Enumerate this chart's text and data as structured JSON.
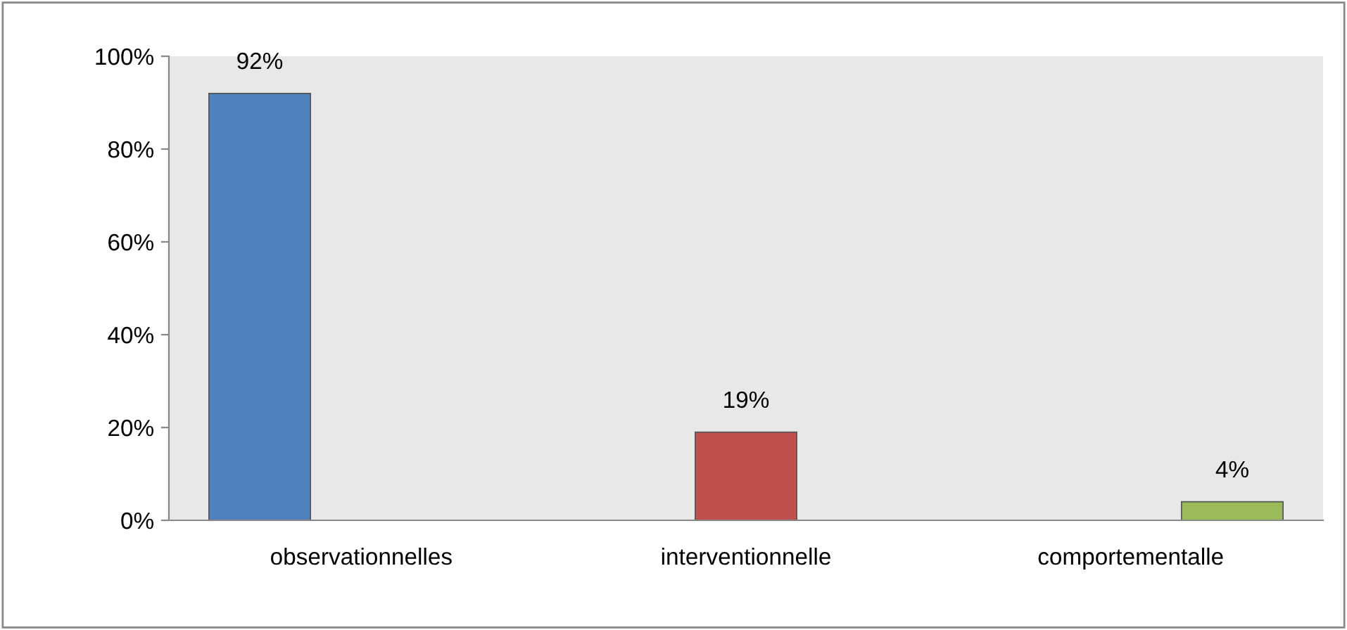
{
  "chart_data": {
    "type": "bar",
    "categories": [
      "observationnelles",
      "interventionnelle",
      "comportementalle"
    ],
    "values": [
      92,
      19,
      4
    ],
    "colors": [
      "#4f81bd",
      "#c0504d",
      "#9bbb59"
    ],
    "value_labels": [
      "92%",
      "19%",
      "4%"
    ],
    "ylim": [
      0,
      100
    ],
    "yticks": [
      {
        "value": 0,
        "label": "0%"
      },
      {
        "value": 20,
        "label": "20%"
      },
      {
        "value": 40,
        "label": "40%"
      },
      {
        "value": 60,
        "label": "60%"
      },
      {
        "value": 80,
        "label": "80%"
      },
      {
        "value": 100,
        "label": "100%"
      }
    ],
    "grid": false,
    "legend": false
  }
}
